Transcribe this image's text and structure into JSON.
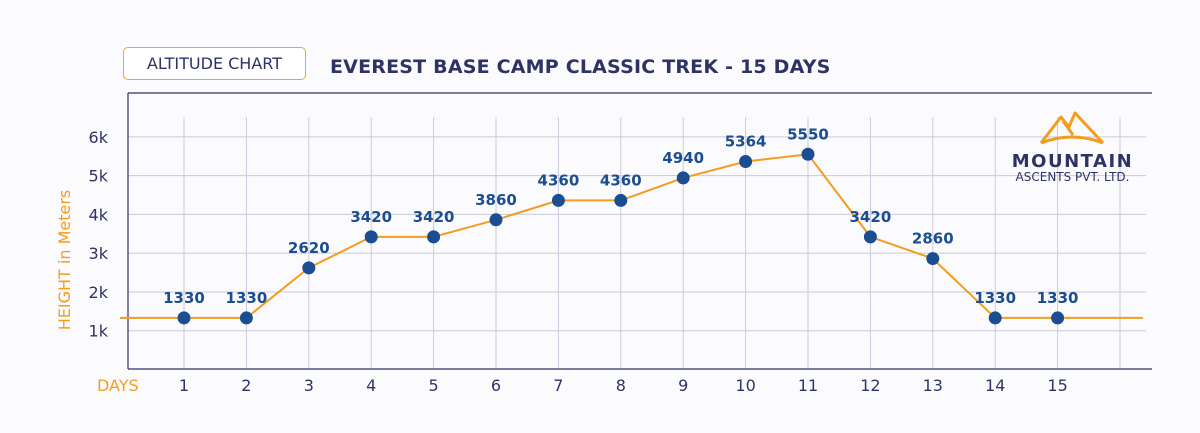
{
  "badge_label": "ALTITUDE CHART",
  "title": "EVEREST BASE CAMP CLASSIC TREK - 15 DAYS",
  "logo": {
    "line1": "MOUNTAIN",
    "line2": "ASCENTS PVT. LTD."
  },
  "colors": {
    "navy": "#2e3366",
    "orange": "#f39c1f",
    "marker": "#1b4e91",
    "grid": "#c9c9dc"
  },
  "chart_data": {
    "type": "line",
    "title": "EVEREST BASE CAMP CLASSIC TREK - 15 DAYS",
    "xlabel": "DAYS",
    "ylabel": "HEIGHT in Meters",
    "x": [
      1,
      2,
      3,
      4,
      5,
      6,
      7,
      8,
      9,
      10,
      11,
      12,
      13,
      14,
      15
    ],
    "values": [
      1330,
      1330,
      2620,
      3420,
      3420,
      3860,
      4360,
      4360,
      4940,
      5364,
      5550,
      3420,
      2860,
      1330,
      1330
    ],
    "data_labels": [
      "1330",
      "1330",
      "2620",
      "3420",
      "3420",
      "3860",
      "4360",
      "4360",
      "4940",
      "5364",
      "5550",
      "3420",
      "2860",
      "1330",
      "1330"
    ],
    "x_tick_labels": [
      "1",
      "2",
      "3",
      "4",
      "5",
      "6",
      "7",
      "8",
      "9",
      "10",
      "11",
      "12",
      "13",
      "14",
      "15"
    ],
    "y_tick_labels": [
      "1k",
      "2k",
      "3k",
      "4k",
      "5k",
      "6k"
    ],
    "y_ticks": [
      1000,
      2000,
      3000,
      4000,
      5000,
      6000
    ],
    "ylim": [
      0,
      6000
    ],
    "grid": true,
    "legend": "none"
  }
}
